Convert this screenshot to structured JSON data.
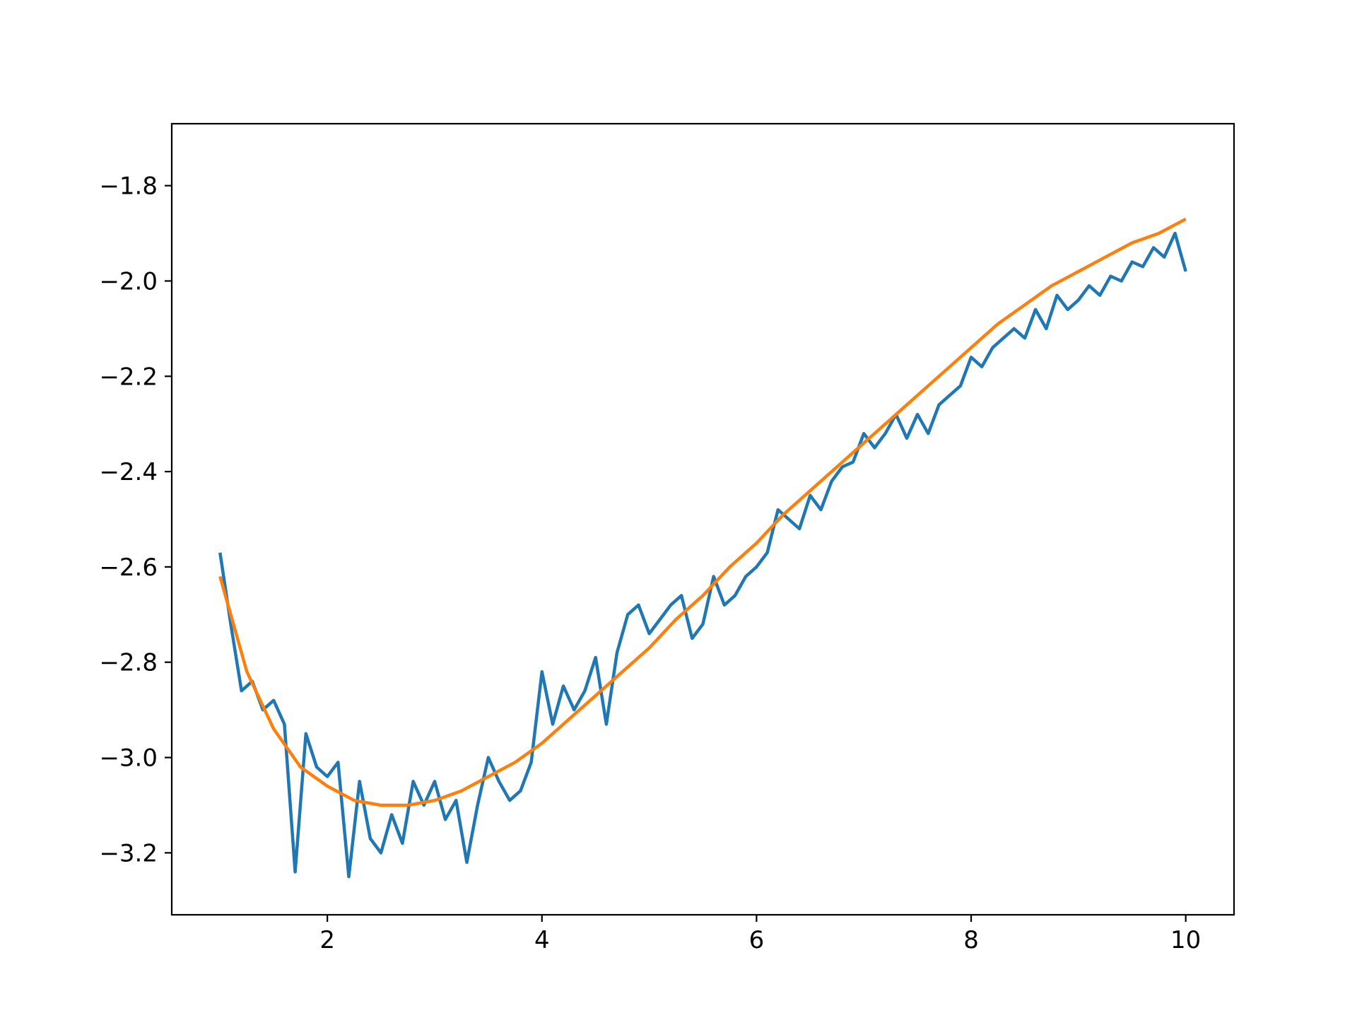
{
  "chart_data": {
    "type": "line",
    "title": "",
    "xlabel": "",
    "ylabel": "",
    "xlim": [
      0.55,
      10.45
    ],
    "ylim": [
      -3.33,
      -1.67
    ],
    "grid": false,
    "legend": "none",
    "x_ticks": [
      {
        "value": 2,
        "label": "2"
      },
      {
        "value": 4,
        "label": "4"
      },
      {
        "value": 6,
        "label": "6"
      },
      {
        "value": 8,
        "label": "8"
      },
      {
        "value": 10,
        "label": "10"
      }
    ],
    "y_ticks": [
      {
        "value": -1.8,
        "label": "−1.8"
      },
      {
        "value": -2.0,
        "label": "−2.0"
      },
      {
        "value": -2.2,
        "label": "−2.2"
      },
      {
        "value": -2.4,
        "label": "−2.4"
      },
      {
        "value": -2.6,
        "label": "−2.6"
      },
      {
        "value": -2.8,
        "label": "−2.8"
      },
      {
        "value": -3.0,
        "label": "−3.0"
      },
      {
        "value": -3.2,
        "label": "−3.2"
      }
    ],
    "series": [
      {
        "color": "#1f77b4",
        "x": [
          1.0,
          1.1,
          1.2,
          1.3,
          1.4,
          1.5,
          1.6,
          1.7,
          1.8,
          1.9,
          2.0,
          2.1,
          2.2,
          2.3,
          2.4,
          2.5,
          2.6,
          2.7,
          2.8,
          2.9,
          3.0,
          3.1,
          3.2,
          3.3,
          3.4,
          3.5,
          3.6,
          3.7,
          3.8,
          3.9,
          4.0,
          4.1,
          4.2,
          4.3,
          4.4,
          4.5,
          4.6,
          4.7,
          4.8,
          4.9,
          5.0,
          5.1,
          5.2,
          5.3,
          5.4,
          5.5,
          5.6,
          5.7,
          5.8,
          5.9,
          6.0,
          6.1,
          6.2,
          6.3,
          6.4,
          6.5,
          6.6,
          6.7,
          6.8,
          6.9,
          7.0,
          7.1,
          7.2,
          7.3,
          7.4,
          7.5,
          7.6,
          7.7,
          7.8,
          7.9,
          8.0,
          8.1,
          8.2,
          8.3,
          8.4,
          8.5,
          8.6,
          8.7,
          8.8,
          8.9,
          9.0,
          9.1,
          9.2,
          9.3,
          9.4,
          9.5,
          9.6,
          9.7,
          9.8,
          9.9,
          10.0
        ],
        "y": [
          -2.57,
          -2.72,
          -2.86,
          -2.84,
          -2.9,
          -2.88,
          -2.93,
          -3.24,
          -2.95,
          -3.02,
          -3.04,
          -3.01,
          -3.25,
          -3.05,
          -3.17,
          -3.2,
          -3.12,
          -3.18,
          -3.05,
          -3.1,
          -3.05,
          -3.13,
          -3.09,
          -3.22,
          -3.1,
          -3.0,
          -3.05,
          -3.09,
          -3.07,
          -3.01,
          -2.82,
          -2.93,
          -2.85,
          -2.9,
          -2.86,
          -2.79,
          -2.93,
          -2.78,
          -2.7,
          -2.68,
          -2.74,
          -2.71,
          -2.68,
          -2.66,
          -2.75,
          -2.72,
          -2.62,
          -2.68,
          -2.66,
          -2.62,
          -2.6,
          -2.57,
          -2.48,
          -2.5,
          -2.52,
          -2.45,
          -2.48,
          -2.42,
          -2.39,
          -2.38,
          -2.32,
          -2.35,
          -2.32,
          -2.28,
          -2.33,
          -2.28,
          -2.32,
          -2.26,
          -2.24,
          -2.22,
          -2.16,
          -2.18,
          -2.14,
          -2.12,
          -2.1,
          -2.12,
          -2.06,
          -2.1,
          -2.03,
          -2.06,
          -2.04,
          -2.01,
          -2.03,
          -1.99,
          -2.0,
          -1.96,
          -1.97,
          -1.93,
          -1.95,
          -1.9,
          -1.98
        ]
      },
      {
        "color": "#ff7f0e",
        "x": [
          1.0,
          1.25,
          1.5,
          1.75,
          2.0,
          2.25,
          2.5,
          2.75,
          3.0,
          3.25,
          3.5,
          3.75,
          4.0,
          4.25,
          4.5,
          4.75,
          5.0,
          5.25,
          5.5,
          5.75,
          6.0,
          6.25,
          6.5,
          6.75,
          7.0,
          7.25,
          7.5,
          7.75,
          8.0,
          8.25,
          8.5,
          8.75,
          9.0,
          9.25,
          9.5,
          9.75,
          10.0
        ],
        "y": [
          -2.62,
          -2.82,
          -2.94,
          -3.02,
          -3.06,
          -3.09,
          -3.1,
          -3.1,
          -3.09,
          -3.07,
          -3.04,
          -3.01,
          -2.97,
          -2.92,
          -2.87,
          -2.82,
          -2.77,
          -2.71,
          -2.66,
          -2.6,
          -2.55,
          -2.49,
          -2.44,
          -2.39,
          -2.34,
          -2.29,
          -2.24,
          -2.19,
          -2.14,
          -2.09,
          -2.05,
          -2.01,
          -1.98,
          -1.95,
          -1.92,
          -1.9,
          -1.87
        ]
      }
    ]
  }
}
